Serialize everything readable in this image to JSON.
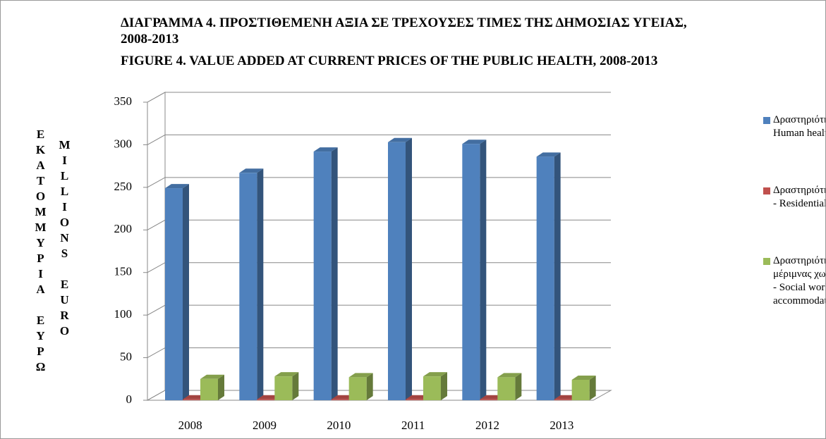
{
  "chart_data": {
    "type": "bar3d",
    "title": "ΔΙΑΓΡΑΜΜΑ  4.  ΠΡΟΣΤΙΘΕΜΕΝΗ ΑΞΙΑ ΣΕ ΤΡΕΧΟΥΣΕΣ ΤΙΜΕΣ ΤΗΣ ΔΗΜΟΣΙΑΣ ΥΓΕΙΑΣ, 2008-2013",
    "subtitle": "FIGURE  4.  VALUE ADDED AT CURRENT PRICES OF THE PUBLIC HEALTH, 2008-2013",
    "y_label": "ΕΚΑΤΟΜΜΥΡΙΑ ΕΥΡΩ",
    "y_label_en": "MILLIONS EURO",
    "categories": [
      "2008",
      "2009",
      "2010",
      "2011",
      "2012",
      "2013"
    ],
    "series": [
      {
        "name": "Δραστηριότητες ανθρώπινης υγείας- Human health activities",
        "color": "#4f81bd",
        "values": [
          249,
          267,
          292,
          303,
          301,
          286
        ]
      },
      {
        "name": "Δραστηριότητες βοήθειας κατ΄ οίκον - Residential care activities",
        "color": "#c0504d",
        "values": [
          1,
          1,
          1,
          1,
          1,
          1
        ]
      },
      {
        "name": "Δραστηριότητες κοινωνικής μέριμνας χωρίς παροχή καταλύματος - Social work activities without accommodation",
        "color": "#9bbb59",
        "values": [
          25,
          28,
          27,
          28,
          27,
          24
        ]
      }
    ],
    "ylim": [
      0,
      350
    ],
    "yticks": [
      0,
      50,
      100,
      150,
      200,
      250,
      300,
      350
    ],
    "grid": true,
    "legend": "right"
  }
}
